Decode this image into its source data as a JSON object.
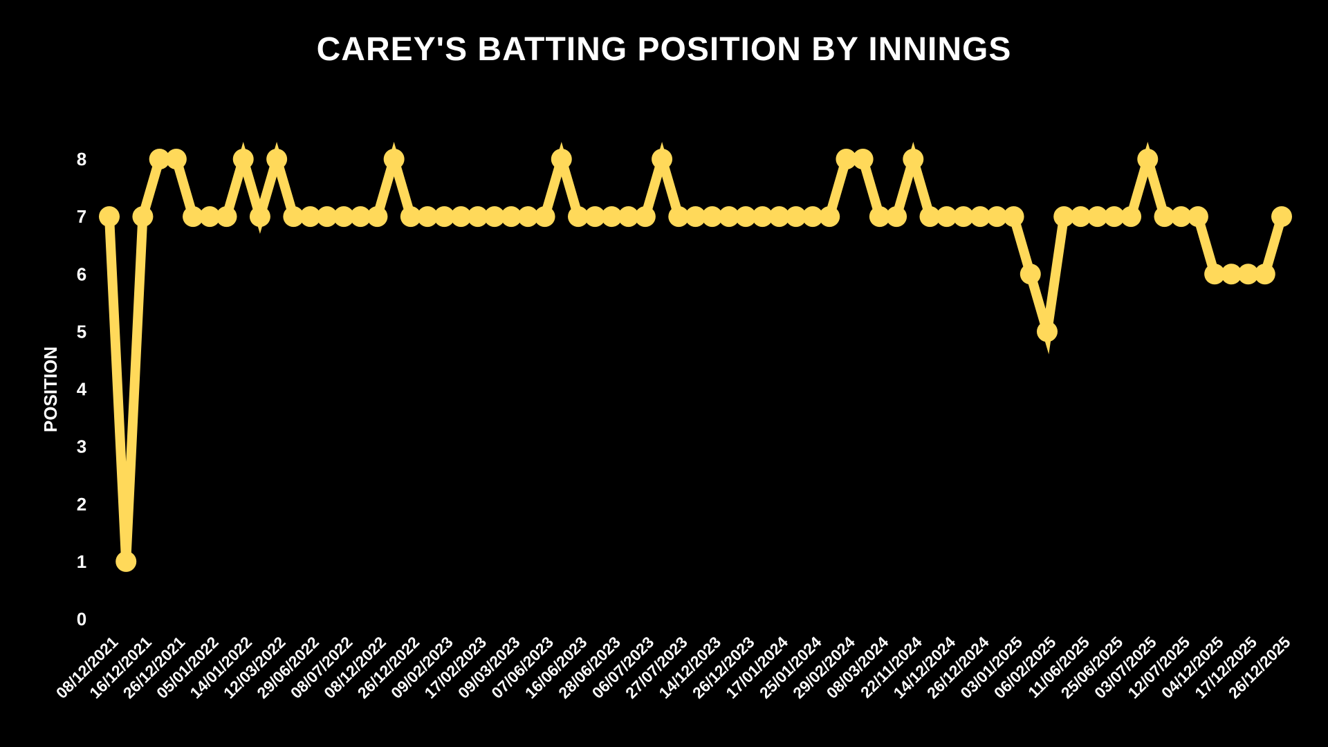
{
  "chart_data": {
    "type": "line",
    "title": "CAREY'S BATTING POSITION BY INNINGS",
    "xlabel": "",
    "ylabel": "POSITION",
    "ylim": [
      0,
      8
    ],
    "yticks": [
      0,
      1,
      2,
      3,
      4,
      5,
      6,
      7,
      8
    ],
    "grid": false,
    "legend": "none",
    "colors": {
      "background": "#000000",
      "line": "#FFD95A",
      "text": "#FFFFFF"
    },
    "x_tick_labels": [
      "08/12/2021",
      "16/12/2021",
      "26/12/2021",
      "05/01/2022",
      "14/01/2022",
      "12/03/2022",
      "29/06/2022",
      "08/07/2022",
      "08/12/2022",
      "26/12/2022",
      "09/02/2023",
      "17/02/2023",
      "09/03/2023",
      "07/06/2023",
      "16/06/2023",
      "28/06/2023",
      "06/07/2023",
      "27/07/2023",
      "14/12/2023",
      "26/12/2023",
      "17/01/2024",
      "25/01/2024",
      "29/02/2024",
      "08/03/2024",
      "22/11/2024",
      "14/12/2024",
      "26/12/2024",
      "03/01/2025",
      "06/02/2025",
      "11/06/2025",
      "25/06/2025",
      "03/07/2025",
      "12/07/2025",
      "04/12/2025",
      "17/12/2025",
      "26/12/2025"
    ],
    "series": [
      {
        "values": [
          7,
          1,
          7,
          8,
          8,
          7,
          7,
          7,
          8,
          7,
          8,
          7,
          7,
          7,
          7,
          7,
          7,
          8,
          7,
          7,
          7,
          7,
          7,
          7,
          7,
          7,
          7,
          8,
          7,
          7,
          7,
          7,
          7,
          8,
          7,
          7,
          7,
          7,
          7,
          7,
          7,
          7,
          7,
          7,
          8,
          8,
          7,
          7,
          8,
          7,
          7,
          7,
          7,
          7,
          7,
          6,
          5,
          7,
          7,
          7,
          7,
          7,
          8,
          7,
          7,
          7,
          6,
          6,
          6,
          6,
          7
        ]
      }
    ]
  }
}
